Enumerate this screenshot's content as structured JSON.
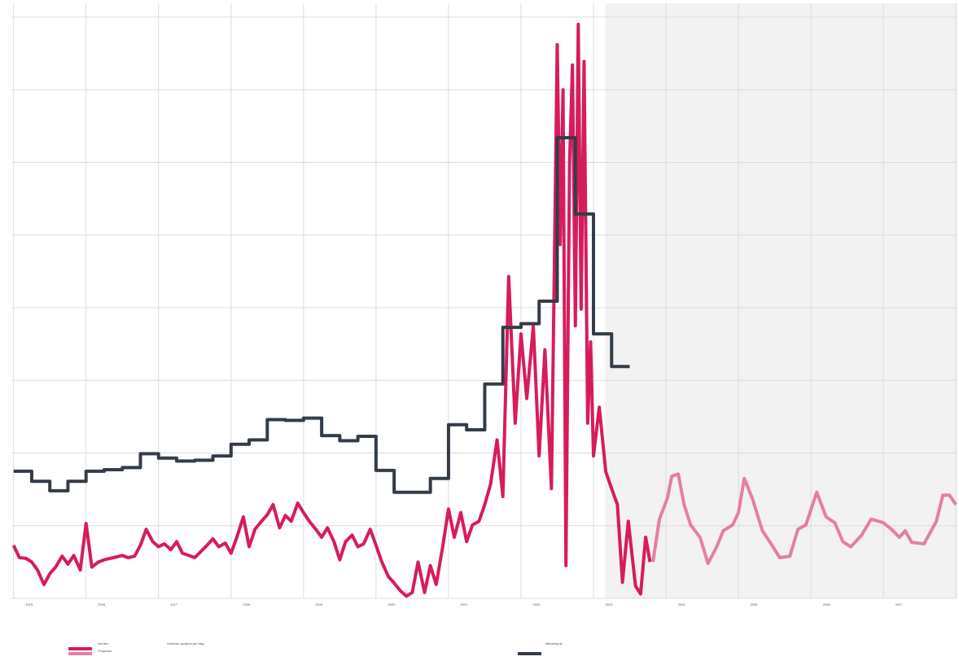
{
  "chart_data": {
    "type": "line",
    "legend_title": "Norden",
    "xlim": [
      2014.97,
      2028.02
    ],
    "ylim": [
      0,
      800
    ],
    "xticks": [
      2015,
      2016,
      2017,
      2018,
      2019,
      2020,
      2021,
      2022,
      2023,
      2024,
      2025,
      2026,
      2027
    ],
    "yticks": [
      0,
      100,
      200,
      300,
      400,
      500,
      600,
      700,
      800
    ],
    "grid": true,
    "forecast_start": 2023.16,
    "forecast_color": "#f2f2f2",
    "series": [
      {
        "name": "Historisk spotpris per dag",
        "color": "#d81b5c",
        "step": false,
        "x": [
          2015.0,
          2015.08,
          2015.17,
          2015.25,
          2015.33,
          2015.42,
          2015.5,
          2015.58,
          2015.67,
          2015.75,
          2015.83,
          2015.92,
          2016.0,
          2016.08,
          2016.17,
          2016.25,
          2016.33,
          2016.42,
          2016.5,
          2016.58,
          2016.67,
          2016.75,
          2016.83,
          2016.92,
          2017.0,
          2017.08,
          2017.17,
          2017.25,
          2017.33,
          2017.42,
          2017.5,
          2017.58,
          2017.67,
          2017.75,
          2017.83,
          2017.92,
          2018.0,
          2018.08,
          2018.17,
          2018.25,
          2018.33,
          2018.42,
          2018.5,
          2018.58,
          2018.67,
          2018.75,
          2018.83,
          2018.92,
          2019.0,
          2019.08,
          2019.17,
          2019.25,
          2019.33,
          2019.42,
          2019.5,
          2019.58,
          2019.67,
          2019.75,
          2019.83,
          2019.92,
          2020.0,
          2020.08,
          2020.17,
          2020.25,
          2020.33,
          2020.42,
          2020.5,
          2020.58,
          2020.67,
          2020.75,
          2020.83,
          2020.92,
          2021.0,
          2021.08,
          2021.17,
          2021.25,
          2021.33,
          2021.42,
          2021.5,
          2021.58,
          2021.67,
          2021.75,
          2021.83,
          2021.92,
          2022.0,
          2022.08,
          2022.17,
          2022.25,
          2022.33,
          2022.42,
          2022.5,
          2022.54,
          2022.58,
          2022.62,
          2022.67,
          2022.71,
          2022.75,
          2022.79,
          2022.83,
          2022.87,
          2022.92,
          2022.96,
          2023.0,
          2023.08,
          2023.17,
          2023.25,
          2023.33,
          2023.4,
          2023.48,
          2023.58,
          2023.65,
          2023.72,
          2023.78
        ],
        "values": [
          73,
          56,
          55,
          50,
          39,
          19,
          34,
          43,
          58,
          47,
          59,
          39,
          103,
          43,
          50,
          53,
          55,
          57,
          59,
          56,
          58,
          73,
          95,
          78,
          71,
          75,
          67,
          78,
          62,
          59,
          56,
          64,
          73,
          82,
          71,
          76,
          62,
          84,
          112,
          71,
          95,
          106,
          115,
          129,
          97,
          114,
          106,
          131,
          118,
          106,
          95,
          84,
          97,
          78,
          53,
          78,
          87,
          71,
          75,
          95,
          73,
          50,
          30,
          21,
          11,
          3,
          8,
          50,
          8,
          45,
          19,
          71,
          123,
          84,
          118,
          78,
          101,
          106,
          129,
          157,
          218,
          140,
          443,
          241,
          364,
          275,
          375,
          196,
          342,
          151,
          762,
          487,
          700,
          45,
          599,
          734,
          375,
          790,
          398,
          739,
          241,
          353,
          196,
          263,
          174,
          151,
          129,
          22,
          106,
          17,
          6,
          84,
          50
        ]
      },
      {
        "name": "Prognose",
        "color": "#e47fa2",
        "step": false,
        "x": [
          2023.82,
          2023.91,
          2024.02,
          2024.08,
          2024.17,
          2024.25,
          2024.34,
          2024.47,
          2024.58,
          2024.7,
          2024.79,
          2024.92,
          2025.0,
          2025.08,
          2025.19,
          2025.33,
          2025.45,
          2025.57,
          2025.71,
          2025.82,
          2025.93,
          2026.08,
          2026.21,
          2026.33,
          2026.44,
          2026.55,
          2026.7,
          2026.83,
          2027.0,
          2027.11,
          2027.22,
          2027.3,
          2027.39,
          2027.56,
          2027.67,
          2027.73,
          2027.82,
          2027.91,
          2028.0
        ],
        "values": [
          50,
          109,
          138,
          168,
          171,
          129,
          101,
          84,
          48,
          71,
          93,
          101,
          118,
          165,
          138,
          93,
          75,
          56,
          58,
          95,
          101,
          146,
          112,
          104,
          78,
          71,
          87,
          109,
          104,
          95,
          84,
          93,
          77,
          75,
          95,
          106,
          142,
          142,
          129
        ]
      },
      {
        "name": "Månedspris",
        "color": "#333c47",
        "step": true,
        "x": [
          2015,
          2015.25,
          2015.5,
          2015.75,
          2016,
          2016.25,
          2016.5,
          2016.75,
          2017,
          2017.25,
          2017.5,
          2017.75,
          2018,
          2018.25,
          2018.5,
          2018.75,
          2019,
          2019.25,
          2019.5,
          2019.75,
          2020,
          2020.25,
          2020.5,
          2020.75,
          2021,
          2021.25,
          2021.5,
          2021.75,
          2022,
          2022.25,
          2022.5,
          2022.75,
          2023,
          2023.25,
          2023.5
        ],
        "values": [
          175,
          161,
          148,
          161,
          175,
          177,
          180,
          199,
          193,
          189,
          190,
          196,
          212,
          218,
          246,
          245,
          248,
          224,
          217,
          223,
          176,
          146,
          146,
          165,
          239,
          232,
          295,
          373,
          378,
          409,
          634,
          529,
          364,
          319,
          319
        ]
      }
    ]
  }
}
